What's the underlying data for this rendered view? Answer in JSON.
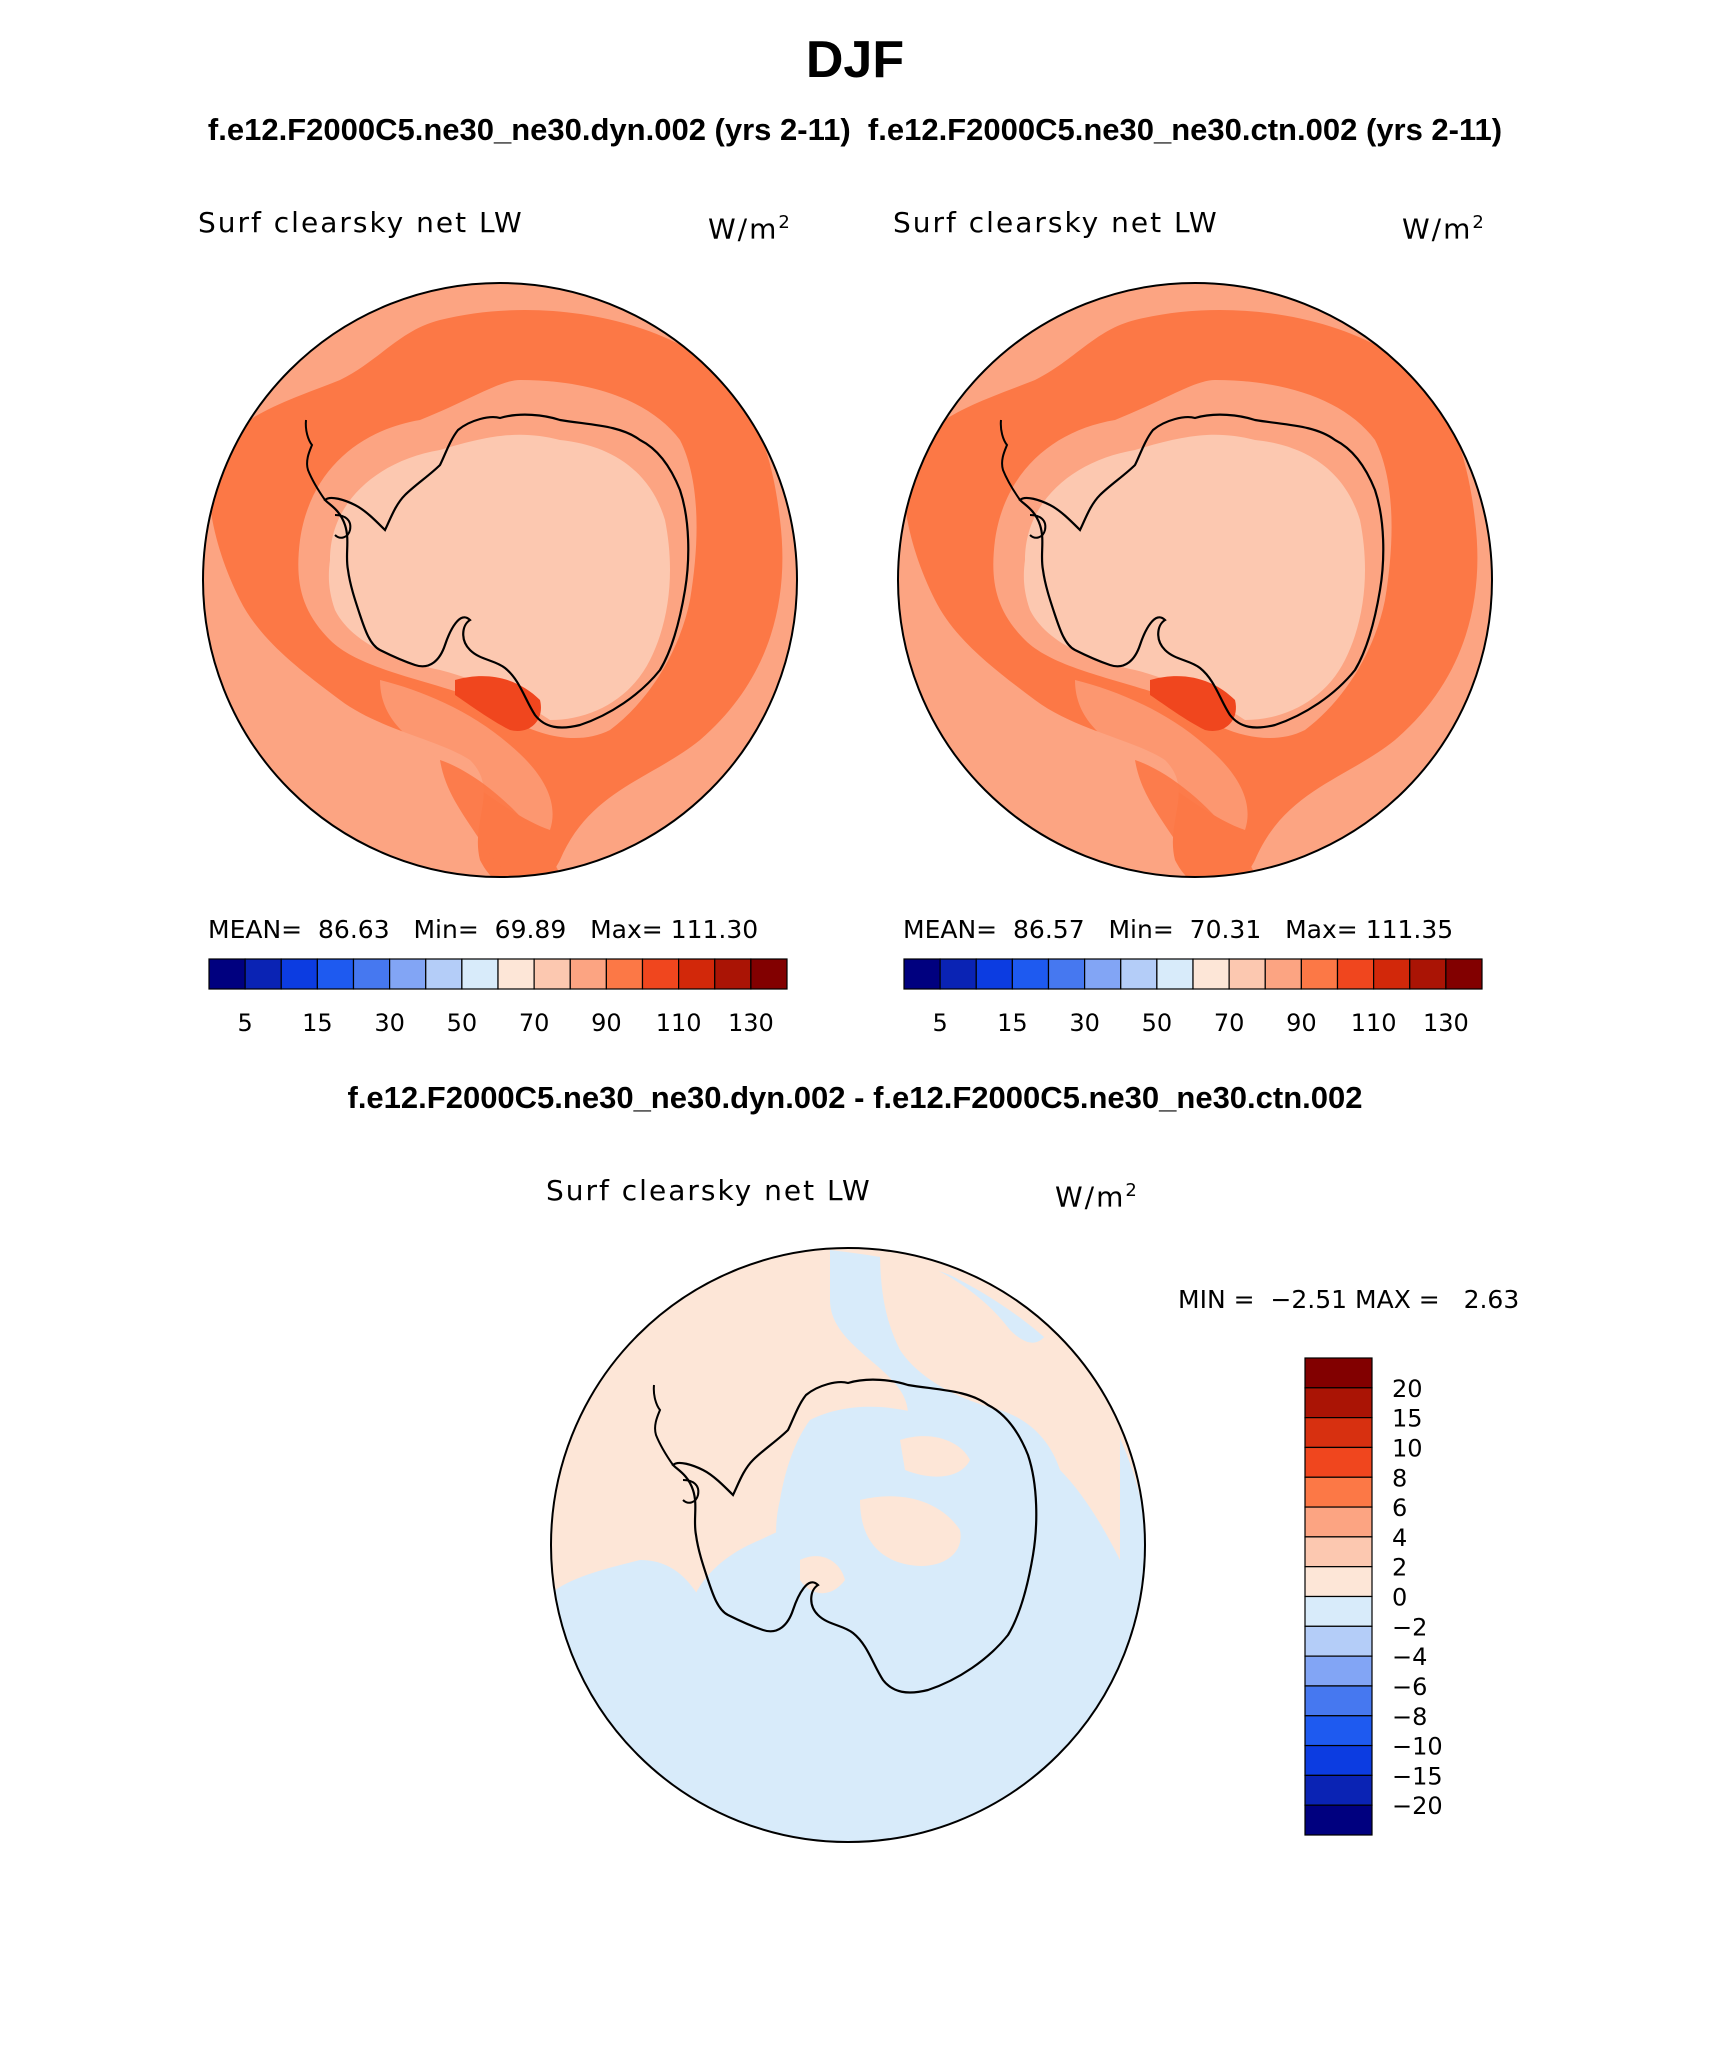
{
  "figure": {
    "season": "DJF",
    "case_header": "f.e12.F2000C5.ne30_ne30.dyn.002 (yrs 2-11)  f.e12.F2000C5.ne30_ne30.ctn.002 (yrs 2-11)",
    "diff_header": "f.e12.F2000C5.ne30_ne30.dyn.002 - f.e12.F2000C5.ne30_ne30.ctn.002"
  },
  "panels": {
    "left": {
      "variable": "Surf clearsky net LW",
      "units": "W/m",
      "units_exp": "2",
      "mean_label": "MEAN=",
      "mean": "86.63",
      "min_label": "Min=",
      "min": "69.89",
      "max_label": "Max=",
      "max": "111.30"
    },
    "right": {
      "variable": "Surf clearsky net LW",
      "units": "W/m",
      "units_exp": "2",
      "mean_label": "MEAN=",
      "mean": "86.57",
      "min_label": "Min=",
      "min": "70.31",
      "max_label": "Max=",
      "max": "111.35"
    },
    "diff": {
      "variable": "Surf clearsky net LW",
      "units": "W/m",
      "units_exp": "2",
      "min_label": "MIN =",
      "min": "−2.51",
      "max_label": "MAX =",
      "max": "2.63"
    }
  },
  "abs_colorbar": {
    "colors": [
      "#00007f",
      "#0a23b4",
      "#0c3ce1",
      "#1e5af0",
      "#4678f0",
      "#82a5f5",
      "#b4cdf8",
      "#d8ebfa",
      "#fde6d7",
      "#fcc8b0",
      "#fca482",
      "#fc7846",
      "#f0461e",
      "#d2280a",
      "#aa1405",
      "#820000"
    ],
    "tick_labels": [
      "5",
      "15",
      "30",
      "50",
      "70",
      "90",
      "110",
      "130"
    ]
  },
  "diff_colorbar": {
    "colors": [
      "#820000",
      "#aa1405",
      "#d73010",
      "#f0461e",
      "#fc7846",
      "#fca482",
      "#fcc8b0",
      "#fde6d7",
      "#d8ebfa",
      "#b4cdf8",
      "#82a5f5",
      "#4678f0",
      "#1e5af0",
      "#0c3ce1",
      "#0a23b4",
      "#00007f"
    ],
    "tick_labels": [
      "20",
      "15",
      "10",
      "8",
      "6",
      "4",
      "2",
      "0",
      "−2",
      "−4",
      "−6",
      "−8",
      "−10",
      "−15",
      "−20"
    ]
  },
  "map_colors": {
    "abs_ocean_outer": "#fca482",
    "abs_ocean_band": "#fc7846",
    "abs_land_high": "#fcc8b0",
    "abs_land_mid": "#fca482",
    "abs_hot": "#f0461e",
    "diff_pos": "#fde6d7",
    "diff_neg": "#d8ebfa",
    "coast": "#000000"
  }
}
